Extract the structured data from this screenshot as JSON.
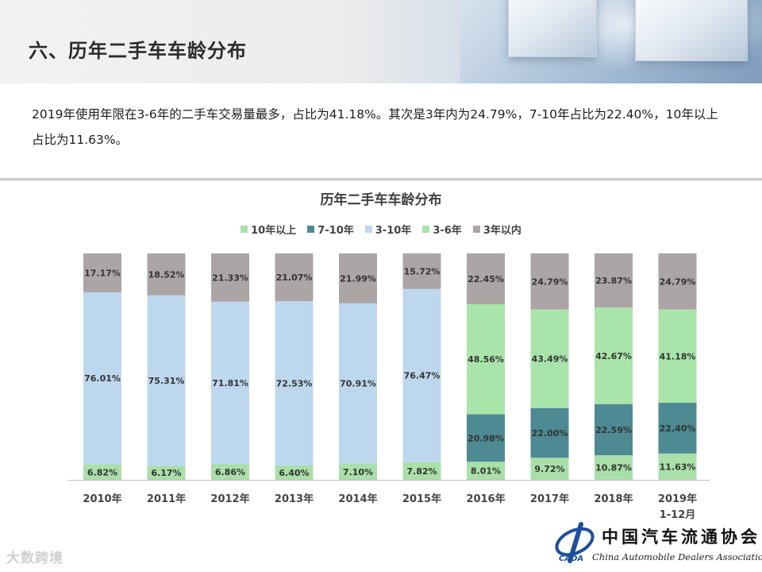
{
  "page": {
    "section_title": "六、历年二手车车龄分布",
    "description": "2019年使用年限在3-6年的二手车交易量最多，占比为41.18%。其次是3年内为24.79%，7-10年占比为22.40%，10年以上占比为11.63%。",
    "watermark": "大数跨境",
    "logo": {
      "cn": "中国汽车流通协会",
      "en": "China Automobile Dealers Association",
      "abbr": "CADA"
    }
  },
  "chart_data": {
    "type": "bar",
    "stacked": true,
    "title": "历年二手车车龄分布",
    "categories": [
      "2010年",
      "2011年",
      "2012年",
      "2013年",
      "2014年",
      "2015年",
      "2016年",
      "2017年",
      "2018年",
      "2019年\n1-12月"
    ],
    "ylim": [
      0,
      100
    ],
    "legend_position": "top",
    "grid": false,
    "stack_order_bottom_to_top": [
      "10年以上",
      "7-10年",
      "3-10年",
      "3-6年",
      "3年以内"
    ],
    "series": [
      {
        "name": "10年以上",
        "color": "#a9dfa8",
        "values": [
          6.82,
          6.17,
          6.86,
          6.4,
          7.1,
          7.82,
          8.01,
          9.72,
          10.87,
          11.63
        ]
      },
      {
        "name": "7-10年",
        "color": "#4d8a93",
        "values": [
          null,
          null,
          null,
          null,
          null,
          null,
          20.98,
          22.0,
          22.59,
          22.4
        ]
      },
      {
        "name": "3-10年",
        "color": "#bdd7ee",
        "values": [
          76.01,
          75.31,
          71.81,
          72.53,
          70.91,
          76.47,
          null,
          null,
          null,
          null
        ]
      },
      {
        "name": "3-6年",
        "color": "#a9e5aa",
        "values": [
          null,
          null,
          null,
          null,
          null,
          null,
          48.56,
          43.49,
          42.67,
          41.18
        ]
      },
      {
        "name": "3年以内",
        "color": "#aca5a5",
        "values": [
          17.17,
          18.52,
          21.33,
          21.07,
          21.99,
          15.72,
          22.45,
          24.79,
          23.87,
          24.79
        ]
      }
    ]
  }
}
